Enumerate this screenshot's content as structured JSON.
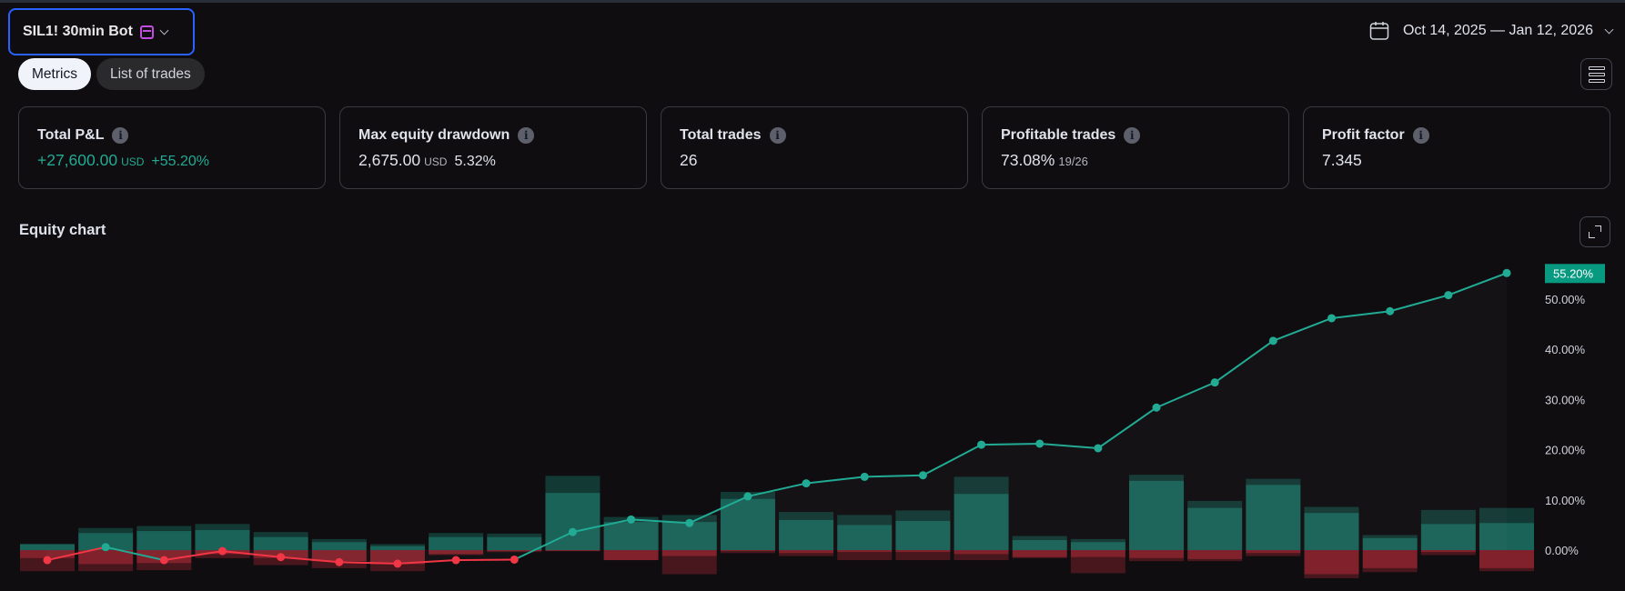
{
  "header": {
    "strategy_name": "SIL1! 30min Bot",
    "date_range": "Oct 14, 2025 — Jan 12, 2026"
  },
  "tabs": [
    {
      "label": "Metrics",
      "active": true
    },
    {
      "label": "List of trades",
      "active": false
    }
  ],
  "metrics": {
    "total_pnl": {
      "title": "Total P&L",
      "value": "+27,600.00",
      "unit": "USD",
      "percent": "+55.20%"
    },
    "max_drawdown": {
      "title": "Max equity drawdown",
      "value": "2,675.00",
      "unit": "USD",
      "percent": "5.32%"
    },
    "total_trades": {
      "title": "Total trades",
      "value": "26"
    },
    "profitable_trades": {
      "title": "Profitable trades",
      "value": "73.08%",
      "ratio": "19/26"
    },
    "profit_factor": {
      "title": "Profit factor",
      "value": "7.345"
    }
  },
  "equity_chart": {
    "title": "Equity chart",
    "last_value_label": "55.20%"
  },
  "colors": {
    "positive": "#22ab94",
    "negative": "#f23645",
    "accent_border": "#2962ff",
    "calendar_icon": "#c24ee0"
  },
  "chart_data": {
    "type": "line",
    "y_unit": "%",
    "ylim": [
      -5,
      57
    ],
    "yticks": [
      "50.00%",
      "40.00%",
      "30.00%",
      "20.00%",
      "10.00%",
      "0.00%"
    ],
    "ytick_values": [
      50,
      40,
      30,
      20,
      10,
      0
    ],
    "grid": false,
    "equity_series": {
      "name": "",
      "values": [
        -2.0,
        0.6,
        -2.0,
        -0.2,
        -1.4,
        -2.4,
        -2.7,
        -2.0,
        -1.9,
        3.6,
        6.1,
        5.4,
        10.7,
        13.3,
        14.6,
        14.9,
        21.0,
        21.2,
        20.3,
        28.4,
        33.4,
        41.7,
        46.2,
        47.6,
        50.8,
        55.2
      ]
    },
    "runup_bars": [
      1.2,
      3.4,
      3.8,
      4.0,
      2.6,
      1.6,
      0.8,
      2.6,
      2.6,
      11.4,
      5.6,
      5.6,
      10.2,
      6.0,
      5.0,
      5.8,
      11.2,
      2.0,
      1.6,
      13.8,
      8.4,
      13.0,
      7.4,
      2.4,
      5.2,
      5.4
    ],
    "runup_bars_wide": [
      0.0,
      1.0,
      1.0,
      1.2,
      1.0,
      0.6,
      0.4,
      0.8,
      0.7,
      3.4,
      1.0,
      1.4,
      1.4,
      1.6,
      2.0,
      2.1,
      3.4,
      0.8,
      0.6,
      1.2,
      1.4,
      1.2,
      1.2,
      0.6,
      2.8,
      3.0
    ],
    "drawdown_bars": [
      -1.6,
      -2.8,
      -2.6,
      -0.8,
      -1.6,
      -2.2,
      -2.8,
      -0.8,
      -0.2,
      -0.2,
      -2.0,
      -1.2,
      -0.2,
      -0.6,
      -0.4,
      -0.4,
      -0.8,
      -1.4,
      -1.4,
      -1.6,
      -1.8,
      -0.6,
      -4.8,
      -3.6,
      -0.4,
      -3.6
    ],
    "drawdown_bars_wide": [
      -2.6,
      -1.4,
      -1.4,
      -0.8,
      -1.4,
      -1.4,
      -1.4,
      -0.2,
      -0.2,
      0.0,
      0.0,
      -3.6,
      -0.4,
      -0.6,
      -1.6,
      -1.6,
      -1.2,
      -0.2,
      -3.2,
      -0.6,
      -0.4,
      -0.6,
      -0.8,
      -0.8,
      -0.6,
      -0.6
    ]
  }
}
